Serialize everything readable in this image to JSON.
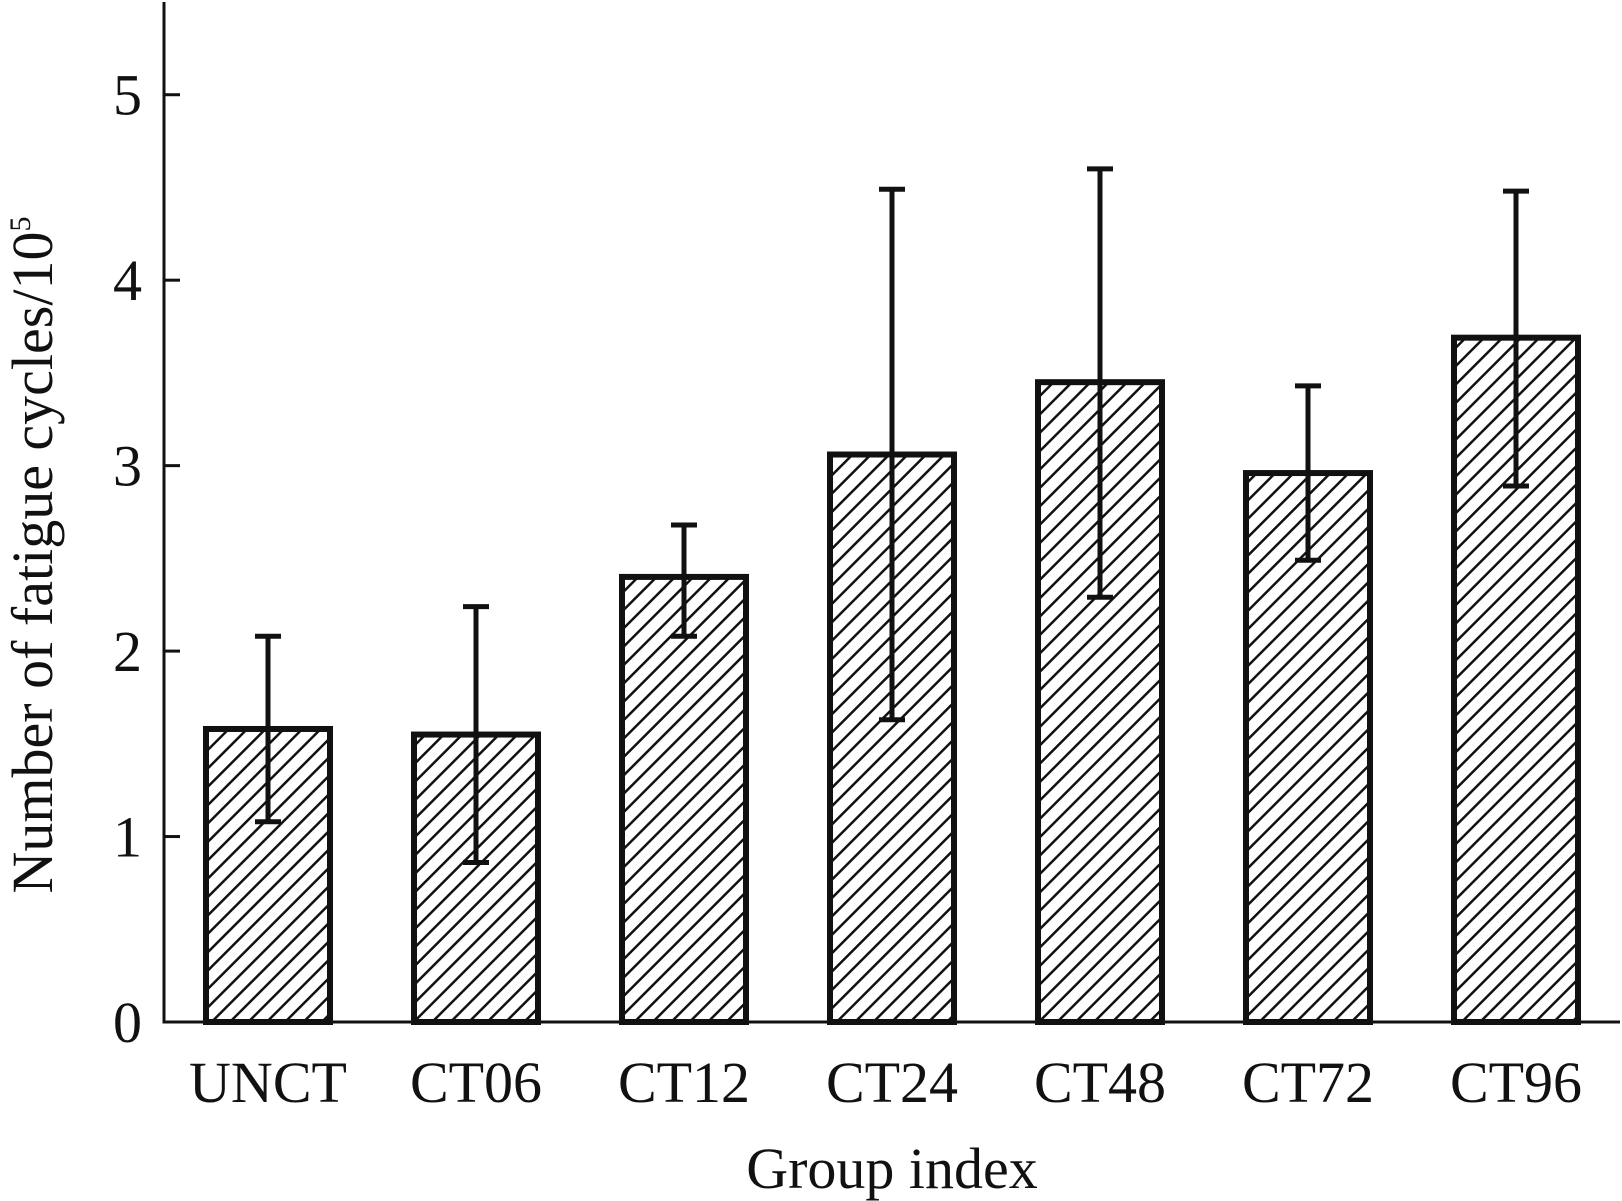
{
  "chart_data": {
    "type": "bar",
    "xlabel": "Group index",
    "ylabel": "Number of fatigue cycles/10",
    "ylabel_superscript": "5",
    "ylim": [
      0,
      5.5
    ],
    "yticks": [
      "0",
      "1",
      "2",
      "3",
      "4",
      "5"
    ],
    "categories": [
      "UNCT",
      "CT06",
      "CT12",
      "CT24",
      "CT48",
      "CT72",
      "CT96"
    ],
    "values": [
      1.58,
      1.55,
      2.4,
      3.06,
      3.45,
      2.96,
      3.69
    ],
    "error_upper": [
      2.08,
      2.24,
      2.68,
      4.49,
      4.6,
      3.43,
      4.48
    ],
    "error_lower": [
      1.08,
      0.86,
      2.08,
      1.63,
      2.29,
      2.49,
      2.89
    ],
    "bar_fill": "hatched",
    "grid": false
  }
}
